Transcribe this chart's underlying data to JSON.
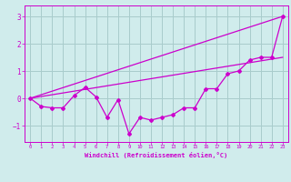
{
  "title": "",
  "xlabel": "Windchill (Refroidissement éolien,°C)",
  "bg_color": "#d0ecec",
  "line_color": "#cc00cc",
  "grid_color": "#a8cccc",
  "xlim": [
    -0.5,
    23.5
  ],
  "ylim": [
    -1.6,
    3.4
  ],
  "x_ticks": [
    0,
    1,
    2,
    3,
    4,
    5,
    6,
    7,
    8,
    9,
    10,
    11,
    12,
    13,
    14,
    15,
    16,
    17,
    18,
    19,
    20,
    21,
    22,
    23
  ],
  "y_ticks": [
    -1,
    0,
    1,
    2,
    3
  ],
  "upper_line": {
    "x": [
      0,
      23
    ],
    "y": [
      0.0,
      3.0
    ]
  },
  "lower_line": {
    "x": [
      0,
      23
    ],
    "y": [
      0.0,
      1.5
    ]
  },
  "data_line": {
    "x": [
      0,
      1,
      2,
      3,
      4,
      5,
      6,
      7,
      8,
      9,
      10,
      11,
      12,
      13,
      14,
      15,
      16,
      17,
      18,
      19,
      20,
      21,
      22,
      23
    ],
    "y": [
      0.0,
      -0.3,
      -0.35,
      -0.35,
      0.1,
      0.4,
      0.05,
      -0.7,
      -0.05,
      -1.3,
      -0.7,
      -0.8,
      -0.7,
      -0.6,
      -0.35,
      -0.35,
      0.35,
      0.35,
      0.9,
      1.0,
      1.4,
      1.5,
      1.5,
      3.0
    ]
  }
}
